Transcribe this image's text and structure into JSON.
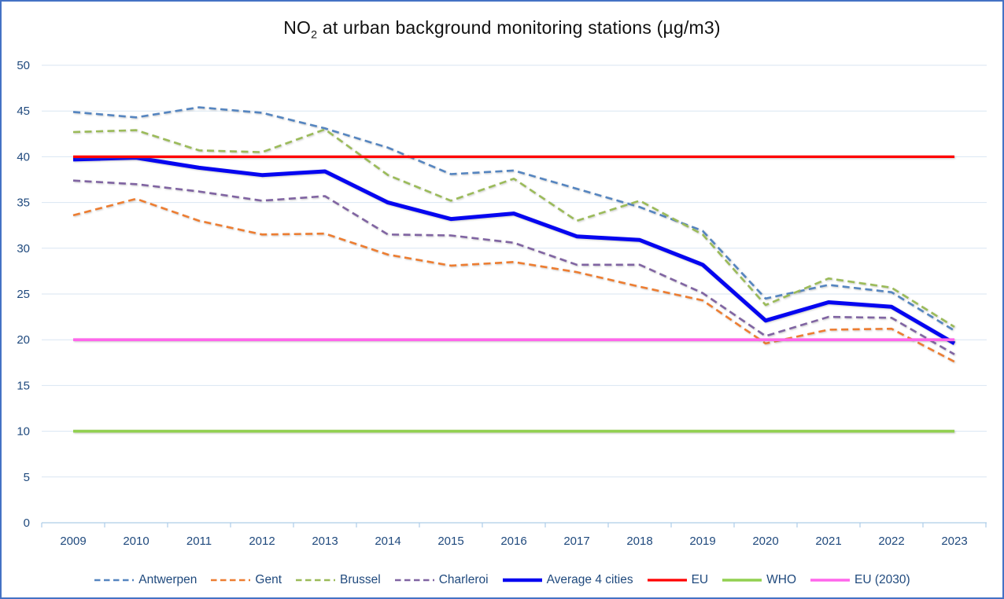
{
  "title": {
    "text": "NO2 at urban background monitoring stations (µg/m3)",
    "base": "NO",
    "subscript": "2",
    "rest": " at urban background monitoring stations (µg/m3)"
  },
  "y_axis": {
    "labels": [
      "0",
      "5",
      "10",
      "15",
      "20",
      "25",
      "30",
      "35",
      "40",
      "45",
      "50"
    ],
    "min": 0,
    "max": 50,
    "step": 5
  },
  "x_axis": {
    "labels": [
      "2009",
      "2010",
      "2011",
      "2012",
      "2013",
      "2014",
      "2015",
      "2016",
      "2017",
      "2018",
      "2019",
      "2020",
      "2021",
      "2022",
      "2023"
    ]
  },
  "chart_data": {
    "type": "line",
    "title": "NO2 at urban background monitoring stations (µg/m3)",
    "x": [
      2009,
      2010,
      2011,
      2012,
      2013,
      2014,
      2015,
      2016,
      2017,
      2018,
      2019,
      2020,
      2021,
      2022,
      2023
    ],
    "ylim": [
      0,
      50
    ],
    "ytick_step": 5,
    "grid": true,
    "legend_position": "bottom",
    "series": [
      {
        "name": "Antwerpen",
        "color": "#5585C0",
        "style": "dashed",
        "width": 2.6,
        "values": [
          44.9,
          44.3,
          45.4,
          44.8,
          43.1,
          41.0,
          38.1,
          38.5,
          36.5,
          34.5,
          31.9,
          24.5,
          26.0,
          25.2,
          21.0
        ]
      },
      {
        "name": "Gent",
        "color": "#ED7D31",
        "style": "dashed",
        "width": 2.6,
        "values": [
          33.6,
          35.4,
          33.0,
          31.5,
          31.6,
          29.3,
          28.1,
          28.5,
          27.4,
          25.8,
          24.3,
          19.6,
          21.1,
          21.2,
          17.6
        ]
      },
      {
        "name": "Brussel",
        "color": "#9BBB59",
        "style": "dashed",
        "width": 2.6,
        "values": [
          42.7,
          42.9,
          40.7,
          40.5,
          43.0,
          38.0,
          35.2,
          37.6,
          33.0,
          35.2,
          31.5,
          23.8,
          26.7,
          25.7,
          21.4
        ]
      },
      {
        "name": "Charleroi",
        "color": "#8064A2",
        "style": "dashed",
        "width": 2.6,
        "values": [
          37.4,
          37.0,
          36.2,
          35.2,
          35.7,
          31.5,
          31.4,
          30.6,
          28.2,
          28.2,
          25.1,
          20.4,
          22.5,
          22.4,
          18.4
        ]
      },
      {
        "name": "Average 4 cities",
        "color": "#0606F0",
        "style": "solid",
        "width": 5,
        "values": [
          39.7,
          39.9,
          38.8,
          38.0,
          38.4,
          35.0,
          33.2,
          33.8,
          31.3,
          30.9,
          28.2,
          22.1,
          24.1,
          23.6,
          19.6
        ]
      },
      {
        "name": "EU",
        "color": "#FF0000",
        "style": "solid",
        "width": 3.2,
        "values": [
          40,
          40,
          40,
          40,
          40,
          40,
          40,
          40,
          40,
          40,
          40,
          40,
          40,
          40,
          40
        ]
      },
      {
        "name": "WHO",
        "color": "#92D050",
        "style": "solid",
        "width": 3.6,
        "values": [
          10,
          10,
          10,
          10,
          10,
          10,
          10,
          10,
          10,
          10,
          10,
          10,
          10,
          10,
          10
        ]
      },
      {
        "name": "EU (2030)",
        "color": "#FF66EB",
        "style": "solid",
        "width": 3.6,
        "values": [
          20,
          20,
          20,
          20,
          20,
          20,
          20,
          20,
          20,
          20,
          20,
          20,
          20,
          20,
          20
        ]
      }
    ]
  },
  "colors": {
    "border": "#4472C4",
    "grid": "#D9E6F2",
    "axis_line": "#AECDE8",
    "axis_text": "#1F497D",
    "background": "#FFFFFF"
  }
}
